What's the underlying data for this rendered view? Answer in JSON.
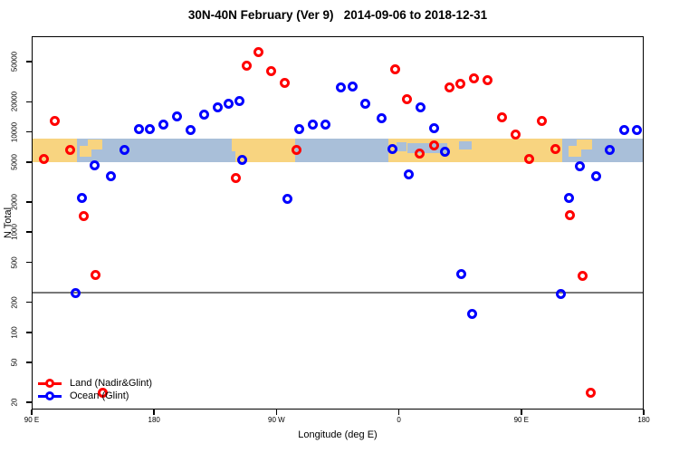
{
  "chart_data": {
    "type": "scatter",
    "title": "30N-40N February (Ver 9)   2014-09-06 to 2018-12-31",
    "xlabel": "Longitude (deg E)",
    "ylabel": "N Total",
    "x_axis": {
      "range": [
        90,
        540
      ],
      "ticks": [
        {
          "value": 90,
          "label": "90 E"
        },
        {
          "value": 180,
          "label": "180"
        },
        {
          "value": 270,
          "label": "90 W"
        },
        {
          "value": 360,
          "label": "0"
        },
        {
          "value": 450,
          "label": "90 E"
        },
        {
          "value": 540,
          "label": "180"
        }
      ]
    },
    "y_axis": {
      "scale": "log",
      "range": [
        17,
        90000
      ],
      "ticks": [
        20,
        50,
        100,
        200,
        500,
        1000,
        2000,
        5000,
        10000,
        20000,
        50000
      ]
    },
    "reference_line": {
      "value": 250,
      "color": "#787878"
    },
    "map_band": {
      "top_value": 8500,
      "bottom_value": 5000,
      "ocean_color": "#a9bfd9",
      "land_color": "#f8d480",
      "land_segments": [
        {
          "lon": [
            90,
            123.5
          ],
          "frac": [
            0,
            1
          ]
        },
        {
          "lon": [
            125,
            134
          ],
          "frac": [
            0.3,
            0.75
          ]
        },
        {
          "lon": [
            131,
            142
          ],
          "frac": [
            0.02,
            0.45
          ]
        },
        {
          "lon": [
            237,
            241
          ],
          "frac": [
            0,
            0.55
          ]
        },
        {
          "lon": [
            240,
            284
          ],
          "frac": [
            0,
            1
          ]
        },
        {
          "lon": [
            352,
            480
          ],
          "frac": [
            0,
            1
          ]
        },
        {
          "lon": [
            485,
            494
          ],
          "frac": [
            0.3,
            0.75
          ]
        },
        {
          "lon": [
            491,
            502
          ],
          "frac": [
            0.02,
            0.45
          ]
        }
      ],
      "ocean_patches": [
        {
          "lon": [
            358.5,
            365.5
          ],
          "frac": [
            0.15,
            0.55
          ]
        },
        {
          "lon": [
            366.5,
            395.5
          ],
          "frac": [
            0.2,
            0.6
          ]
        },
        {
          "lon": [
            404.5,
            413.5
          ],
          "frac": [
            0.1,
            0.45
          ]
        },
        {
          "lon": [
            309,
            315
          ],
          "frac": [
            0.75,
            1
          ]
        }
      ]
    },
    "series": [
      {
        "name": "Land (Nadir&Glint)",
        "color": "#ff0000",
        "marker": "open-circle",
        "points": [
          [
            99,
            5400
          ],
          [
            107,
            12800
          ],
          [
            118,
            6600
          ],
          [
            128,
            1460
          ],
          [
            137,
            370
          ],
          [
            142,
            25
          ],
          [
            240,
            3500
          ],
          [
            248,
            46000
          ],
          [
            257,
            62000
          ],
          [
            266,
            40000
          ],
          [
            276,
            30500
          ],
          [
            285,
            6600
          ],
          [
            357,
            42000
          ],
          [
            366,
            21000
          ],
          [
            375,
            6100
          ],
          [
            386,
            7400
          ],
          [
            397,
            27500
          ],
          [
            405,
            30000
          ],
          [
            415,
            34000
          ],
          [
            425,
            32500
          ],
          [
            436,
            14000
          ],
          [
            446,
            9400
          ],
          [
            456,
            5400
          ],
          [
            465,
            12800
          ],
          [
            475,
            6800
          ],
          [
            486,
            1480
          ],
          [
            495,
            365
          ],
          [
            501,
            25
          ]
        ]
      },
      {
        "name": "Ocean (Glint)",
        "color": "#0000ff",
        "marker": "open-circle",
        "points": [
          [
            122,
            245
          ],
          [
            127,
            2200
          ],
          [
            136,
            4600
          ],
          [
            148,
            3600
          ],
          [
            158,
            6600
          ],
          [
            169,
            10600
          ],
          [
            177,
            10600
          ],
          [
            187,
            11900
          ],
          [
            197,
            14200
          ],
          [
            207,
            10500
          ],
          [
            217,
            15000
          ],
          [
            227,
            17500
          ],
          [
            235,
            19000
          ],
          [
            243,
            20300
          ],
          [
            245,
            5300
          ],
          [
            278,
            2150
          ],
          [
            287,
            10600
          ],
          [
            297,
            11800
          ],
          [
            306,
            11800
          ],
          [
            317,
            27800
          ],
          [
            326,
            28200
          ],
          [
            335,
            19200
          ],
          [
            347,
            13600
          ],
          [
            355,
            6800
          ],
          [
            367,
            3800
          ],
          [
            376,
            17400
          ],
          [
            386,
            10900
          ],
          [
            394,
            6400
          ],
          [
            406,
            385
          ],
          [
            414,
            154
          ],
          [
            479,
            240
          ],
          [
            485,
            2200
          ],
          [
            493,
            4500
          ],
          [
            505,
            3600
          ],
          [
            515,
            6600
          ],
          [
            526,
            10400
          ],
          [
            535,
            10500
          ]
        ]
      }
    ],
    "legend_position": "bottom-left"
  }
}
